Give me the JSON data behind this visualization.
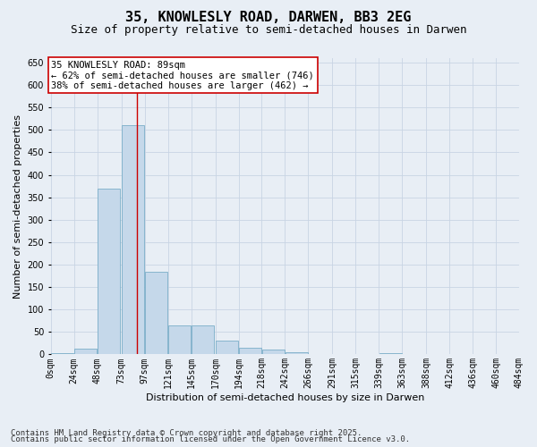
{
  "title_line1": "35, KNOWLESLY ROAD, DARWEN, BB3 2EG",
  "title_line2": "Size of property relative to semi-detached houses in Darwen",
  "xlabel": "Distribution of semi-detached houses by size in Darwen",
  "ylabel": "Number of semi-detached properties",
  "bar_color": "#c5d8ea",
  "bar_edge_color": "#7aaec8",
  "bin_starts": [
    0,
    24,
    48,
    73,
    97,
    121,
    145,
    170,
    194,
    218,
    242,
    266,
    291,
    315,
    339,
    363,
    388,
    412,
    436,
    460
  ],
  "bin_width": 24,
  "bar_heights": [
    3,
    12,
    370,
    510,
    185,
    65,
    65,
    30,
    15,
    10,
    5,
    0,
    0,
    0,
    3,
    0,
    0,
    0,
    0,
    0
  ],
  "tick_labels": [
    "0sqm",
    "24sqm",
    "48sqm",
    "73sqm",
    "97sqm",
    "121sqm",
    "145sqm",
    "170sqm",
    "194sqm",
    "218sqm",
    "242sqm",
    "266sqm",
    "291sqm",
    "315sqm",
    "339sqm",
    "363sqm",
    "388sqm",
    "412sqm",
    "436sqm",
    "460sqm",
    "484sqm"
  ],
  "property_size": 89,
  "property_line_color": "#cc0000",
  "annotation_line1": "35 KNOWLESLY ROAD: 89sqm",
  "annotation_line2": "← 62% of semi-detached houses are smaller (746)",
  "annotation_line3": "38% of semi-detached houses are larger (462) →",
  "annotation_box_color": "#ffffff",
  "annotation_box_edge": "#cc0000",
  "ylim": [
    0,
    660
  ],
  "yticks": [
    0,
    50,
    100,
    150,
    200,
    250,
    300,
    350,
    400,
    450,
    500,
    550,
    600,
    650
  ],
  "grid_color": "#c8d4e4",
  "background_color": "#e8eef5",
  "plot_bg_color": "#e8eef5",
  "footer_line1": "Contains HM Land Registry data © Crown copyright and database right 2025.",
  "footer_line2": "Contains public sector information licensed under the Open Government Licence v3.0.",
  "title_fontsize": 11,
  "subtitle_fontsize": 9,
  "axis_label_fontsize": 8,
  "tick_fontsize": 7,
  "annotation_fontsize": 7.5,
  "footer_fontsize": 6.5
}
